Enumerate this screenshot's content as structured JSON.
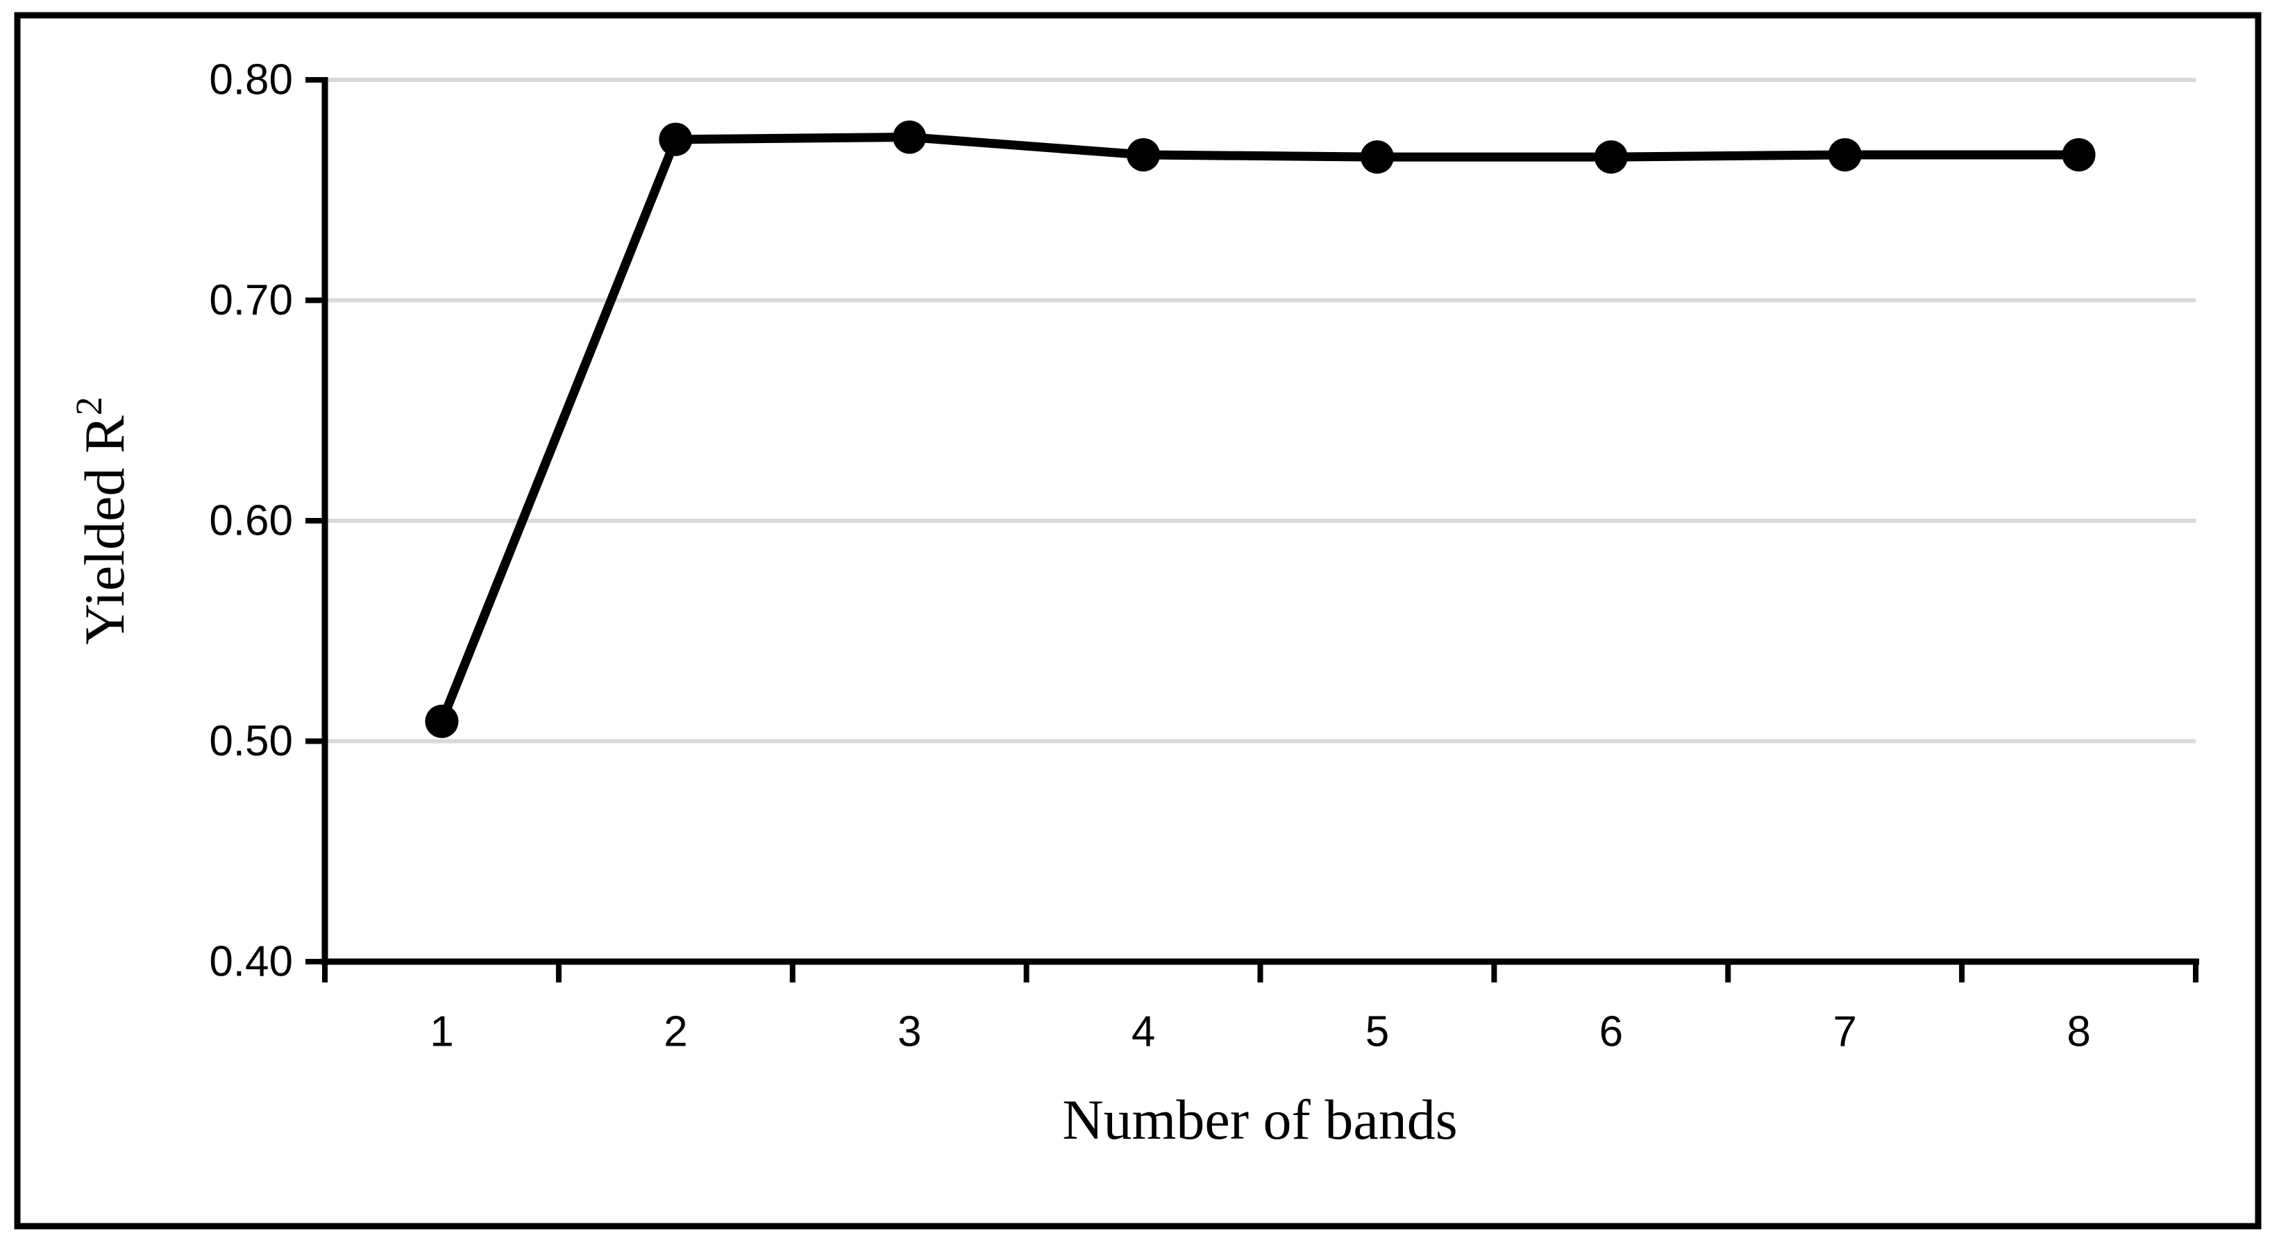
{
  "figure": {
    "background_color": "#ffffff",
    "border_color": "#000000",
    "text_color": "#000000"
  },
  "labels": {
    "xlabel": "Number of bands",
    "ylabel_base": "Yielded R",
    "ylabel_sup": "2"
  },
  "chart_data": {
    "type": "line",
    "title": "",
    "xlabel": "Number of bands",
    "ylabel": "Yielded R²",
    "categories": [
      "1",
      "2",
      "3",
      "4",
      "5",
      "6",
      "7",
      "8"
    ],
    "x": [
      1,
      2,
      3,
      4,
      5,
      6,
      7,
      8
    ],
    "series": [
      {
        "name": "Yielded R²",
        "values": [
          0.509,
          0.773,
          0.774,
          0.766,
          0.765,
          0.765,
          0.766,
          0.766
        ]
      }
    ],
    "ylim": [
      0.4,
      0.8
    ],
    "yticks": [
      0.4,
      0.5,
      0.6,
      0.7,
      0.8
    ],
    "ytick_labels": [
      "0.40",
      "0.50",
      "0.60",
      "0.70",
      "0.80"
    ],
    "grid": "horizontal",
    "gridline_color": "#d9d9d9",
    "line_color": "#000000",
    "marker": "filled-circle",
    "marker_color": "#000000",
    "legend": "none"
  }
}
